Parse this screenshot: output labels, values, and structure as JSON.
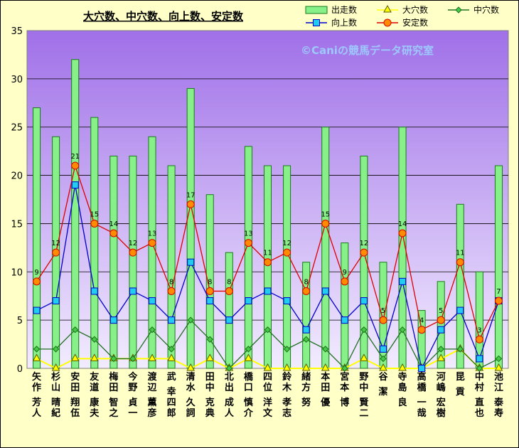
{
  "colors": {
    "outer_bg": "#ffffc8",
    "plot_bg_top": "#a070e8",
    "plot_bg_bottom": "#f2ecff",
    "bar_fill": "#88f088",
    "bar_stroke": "#1a7a1a",
    "daiana": "#ffff00",
    "chuana": "#207020",
    "kojo": "#0000cc",
    "kojo_marker": "#22ccee",
    "antei": "#dd0000",
    "antei_marker": "#ff8c00"
  },
  "chart_data": {
    "type": "bar",
    "title": "大穴数、中穴数、向上数、安定数",
    "watermark": "©Caniの競馬データ研究室",
    "ylim": [
      0,
      35
    ],
    "yticks": [
      0,
      5,
      10,
      15,
      20,
      25,
      30,
      35
    ],
    "grid": true,
    "legend_position": "top-right",
    "categories": [
      "矢作 芳人",
      "杉山 晴紀",
      "安田 翔伍",
      "友道 康夫",
      "梅田 智之",
      "今野 貞一",
      "渡辺 薫彦",
      "武 幸四郎",
      "清水 久詞",
      "田中 克典",
      "北出 成人",
      "橋口 慎介",
      "四位 洋文",
      "鈴木 孝志",
      "緒方 努",
      "本田 優",
      "宮本 博",
      "野中 賢二",
      "谷 潔",
      "寺島 良",
      "高橋 一哉",
      "河嶋 宏樹",
      "昆 貢",
      "中村 直也",
      "池江 泰寿"
    ],
    "series": [
      {
        "name": "出走数",
        "kind": "bar",
        "values": [
          27,
          24,
          32,
          26,
          22,
          22,
          24,
          21,
          29,
          18,
          12,
          23,
          21,
          21,
          11,
          25,
          13,
          22,
          11,
          25,
          6,
          9,
          17,
          10,
          21
        ]
      },
      {
        "name": "大穴数",
        "kind": "line",
        "values": [
          1,
          0,
          1,
          1,
          1,
          1,
          1,
          1,
          0,
          1,
          0,
          1,
          0,
          0,
          0,
          0,
          0,
          1,
          0,
          0,
          0,
          1,
          2,
          0,
          0
        ]
      },
      {
        "name": "中穴数",
        "kind": "line",
        "values": [
          2,
          2,
          4,
          3,
          1,
          1,
          4,
          2,
          5,
          3,
          0,
          2,
          4,
          2,
          3,
          2,
          0,
          4,
          1,
          4,
          0,
          2,
          2,
          0,
          1
        ]
      },
      {
        "name": "向上数",
        "kind": "line",
        "values": [
          6,
          7,
          19,
          8,
          5,
          8,
          7,
          5,
          11,
          7,
          5,
          7,
          8,
          7,
          4,
          8,
          5,
          7,
          2,
          9,
          0,
          4,
          6,
          1,
          7
        ]
      },
      {
        "name": "安定数",
        "kind": "line",
        "values": [
          9,
          12,
          21,
          15,
          14,
          12,
          13,
          8,
          17,
          8,
          8,
          13,
          11,
          12,
          8,
          15,
          9,
          12,
          5,
          14,
          4,
          5,
          11,
          3,
          7
        ],
        "data_labels": true
      }
    ]
  }
}
